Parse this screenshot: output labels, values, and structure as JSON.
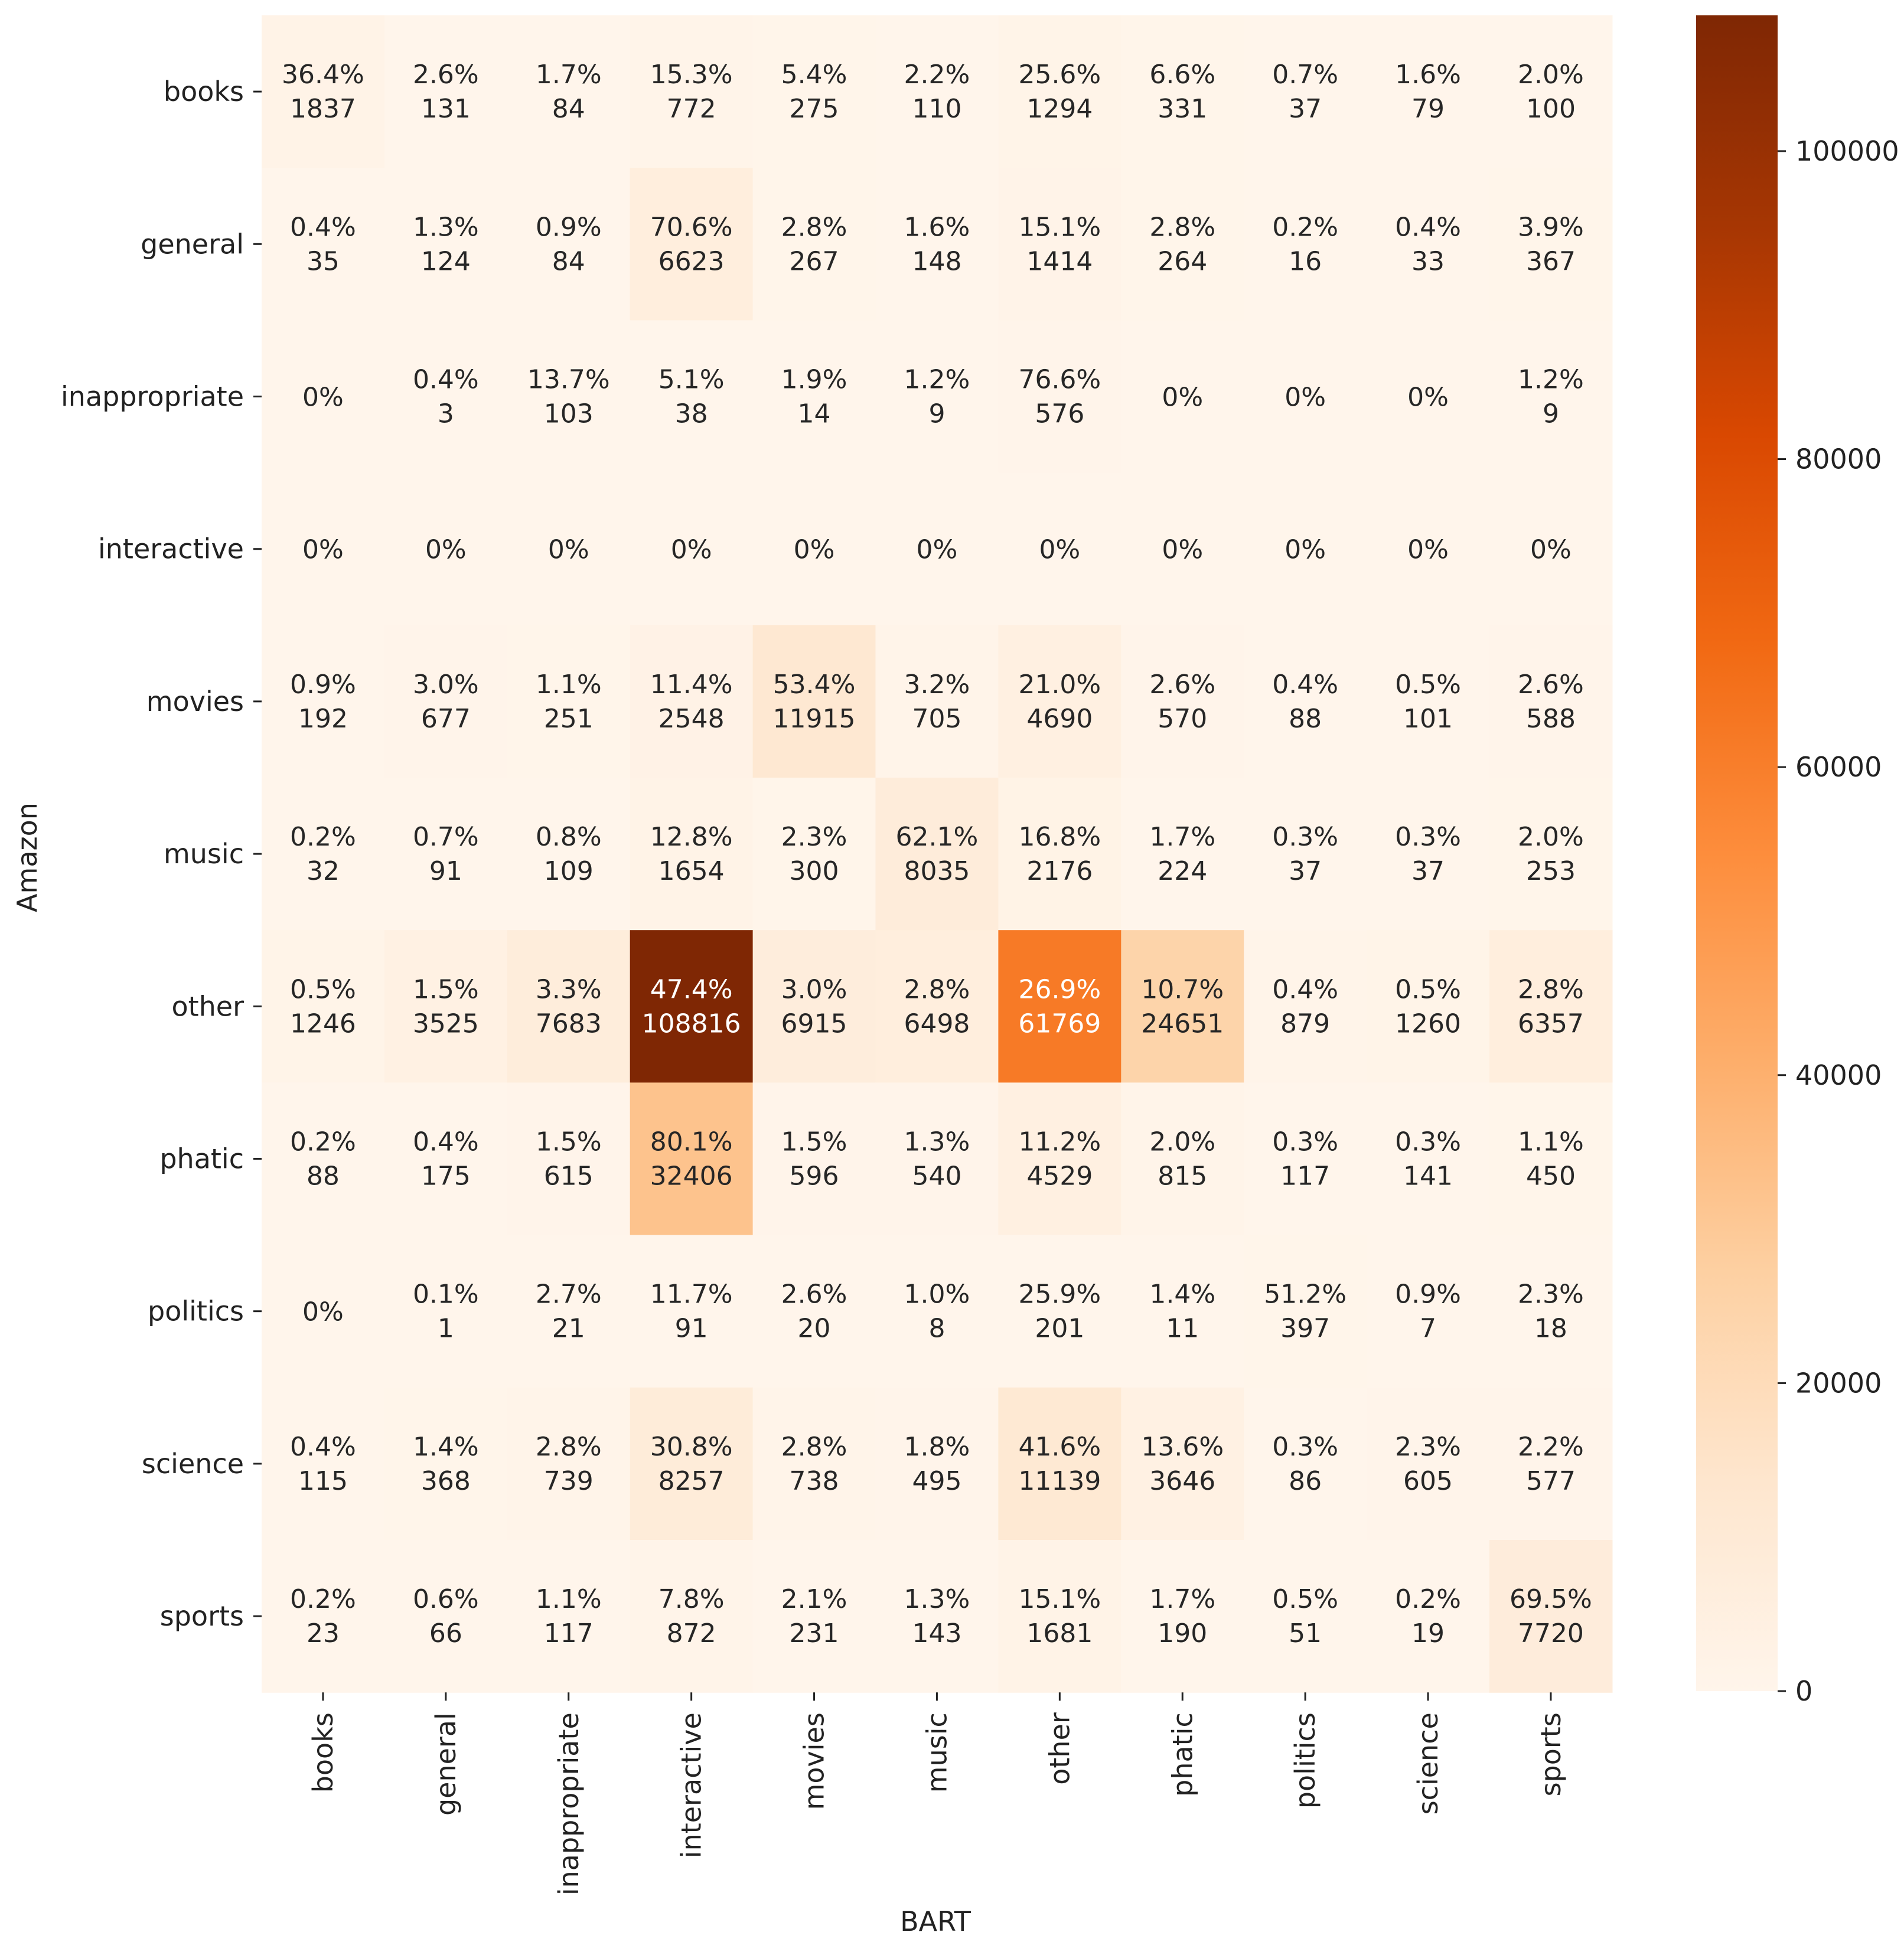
{
  "chart_data": {
    "type": "heatmap",
    "xlabel": "BART",
    "ylabel": "Amazon",
    "x_categories": [
      "books",
      "general",
      "inappropriate",
      "interactive",
      "movies",
      "music",
      "other",
      "phatic",
      "politics",
      "science",
      "sports"
    ],
    "y_categories": [
      "books",
      "general",
      "inappropriate",
      "interactive",
      "movies",
      "music",
      "other",
      "phatic",
      "politics",
      "science",
      "sports"
    ],
    "percent_labels": [
      [
        "36.4%",
        "2.6%",
        "1.7%",
        "15.3%",
        "5.4%",
        "2.2%",
        "25.6%",
        "6.6%",
        "0.7%",
        "1.6%",
        "2.0%"
      ],
      [
        "0.4%",
        "1.3%",
        "0.9%",
        "70.6%",
        "2.8%",
        "1.6%",
        "15.1%",
        "2.8%",
        "0.2%",
        "0.4%",
        "3.9%"
      ],
      [
        "0%",
        "0.4%",
        "13.7%",
        "5.1%",
        "1.9%",
        "1.2%",
        "76.6%",
        "0%",
        "0%",
        "0%",
        "1.2%"
      ],
      [
        "0%",
        "0%",
        "0%",
        "0%",
        "0%",
        "0%",
        "0%",
        "0%",
        "0%",
        "0%",
        "0%"
      ],
      [
        "0.9%",
        "3.0%",
        "1.1%",
        "11.4%",
        "53.4%",
        "3.2%",
        "21.0%",
        "2.6%",
        "0.4%",
        "0.5%",
        "2.6%"
      ],
      [
        "0.2%",
        "0.7%",
        "0.8%",
        "12.8%",
        "2.3%",
        "62.1%",
        "16.8%",
        "1.7%",
        "0.3%",
        "0.3%",
        "2.0%"
      ],
      [
        "0.5%",
        "1.5%",
        "3.3%",
        "47.4%",
        "3.0%",
        "2.8%",
        "26.9%",
        "10.7%",
        "0.4%",
        "0.5%",
        "2.8%"
      ],
      [
        "0.2%",
        "0.4%",
        "1.5%",
        "80.1%",
        "1.5%",
        "1.3%",
        "11.2%",
        "2.0%",
        "0.3%",
        "0.3%",
        "1.1%"
      ],
      [
        "0%",
        "0.1%",
        "2.7%",
        "11.7%",
        "2.6%",
        "1.0%",
        "25.9%",
        "1.4%",
        "51.2%",
        "0.9%",
        "2.3%"
      ],
      [
        "0.4%",
        "1.4%",
        "2.8%",
        "30.8%",
        "2.8%",
        "1.8%",
        "41.6%",
        "13.6%",
        "0.3%",
        "2.3%",
        "2.2%"
      ],
      [
        "0.2%",
        "0.6%",
        "1.1%",
        "7.8%",
        "2.1%",
        "1.3%",
        "15.1%",
        "1.7%",
        "0.5%",
        "0.2%",
        "69.5%"
      ]
    ],
    "counts": [
      [
        1837,
        131,
        84,
        772,
        275,
        110,
        1294,
        331,
        37,
        79,
        100
      ],
      [
        35,
        124,
        84,
        6623,
        267,
        148,
        1414,
        264,
        16,
        33,
        367
      ],
      [
        0,
        3,
        103,
        38,
        14,
        9,
        576,
        0,
        0,
        0,
        9
      ],
      [
        0,
        0,
        0,
        0,
        0,
        0,
        0,
        0,
        0,
        0,
        0
      ],
      [
        192,
        677,
        251,
        2548,
        11915,
        705,
        4690,
        570,
        88,
        101,
        588
      ],
      [
        32,
        91,
        109,
        1654,
        300,
        8035,
        2176,
        224,
        37,
        37,
        253
      ],
      [
        1246,
        3525,
        7683,
        108816,
        6915,
        6498,
        61769,
        24651,
        879,
        1260,
        6357
      ],
      [
        88,
        175,
        615,
        32406,
        596,
        540,
        4529,
        815,
        117,
        141,
        450
      ],
      [
        0,
        1,
        21,
        91,
        20,
        8,
        201,
        11,
        397,
        7,
        18
      ],
      [
        115,
        368,
        739,
        8257,
        738,
        495,
        11139,
        3646,
        86,
        605,
        577
      ],
      [
        23,
        66,
        117,
        872,
        231,
        143,
        1681,
        190,
        51,
        19,
        7720
      ]
    ],
    "count_shown": [
      [
        true,
        true,
        true,
        true,
        true,
        true,
        true,
        true,
        true,
        true,
        true
      ],
      [
        true,
        true,
        true,
        true,
        true,
        true,
        true,
        true,
        true,
        true,
        true
      ],
      [
        false,
        true,
        true,
        true,
        true,
        true,
        true,
        false,
        false,
        false,
        true
      ],
      [
        false,
        false,
        false,
        false,
        false,
        false,
        false,
        false,
        false,
        false,
        false
      ],
      [
        true,
        true,
        true,
        true,
        true,
        true,
        true,
        true,
        true,
        true,
        true
      ],
      [
        true,
        true,
        true,
        true,
        true,
        true,
        true,
        true,
        true,
        true,
        true
      ],
      [
        true,
        true,
        true,
        true,
        true,
        true,
        true,
        true,
        true,
        true,
        true
      ],
      [
        true,
        true,
        true,
        true,
        true,
        true,
        true,
        true,
        true,
        true,
        true
      ],
      [
        false,
        true,
        true,
        true,
        true,
        true,
        true,
        true,
        true,
        true,
        true
      ],
      [
        true,
        true,
        true,
        true,
        true,
        true,
        true,
        true,
        true,
        true,
        true
      ],
      [
        true,
        true,
        true,
        true,
        true,
        true,
        true,
        true,
        true,
        true,
        true
      ]
    ],
    "colorbar": {
      "min": 0,
      "max": 108816,
      "ticks": [
        0,
        20000,
        40000,
        60000,
        80000,
        100000
      ],
      "tick_labels": [
        "0",
        "20000",
        "40000",
        "60000",
        "80000",
        "100000"
      ]
    },
    "colormap": "Oranges",
    "colormap_stops": [
      "#fff5eb",
      "#fee6ce",
      "#fdd0a2",
      "#fdae6b",
      "#fd8d3c",
      "#f16913",
      "#d94801",
      "#a63603",
      "#7f2704"
    ]
  }
}
